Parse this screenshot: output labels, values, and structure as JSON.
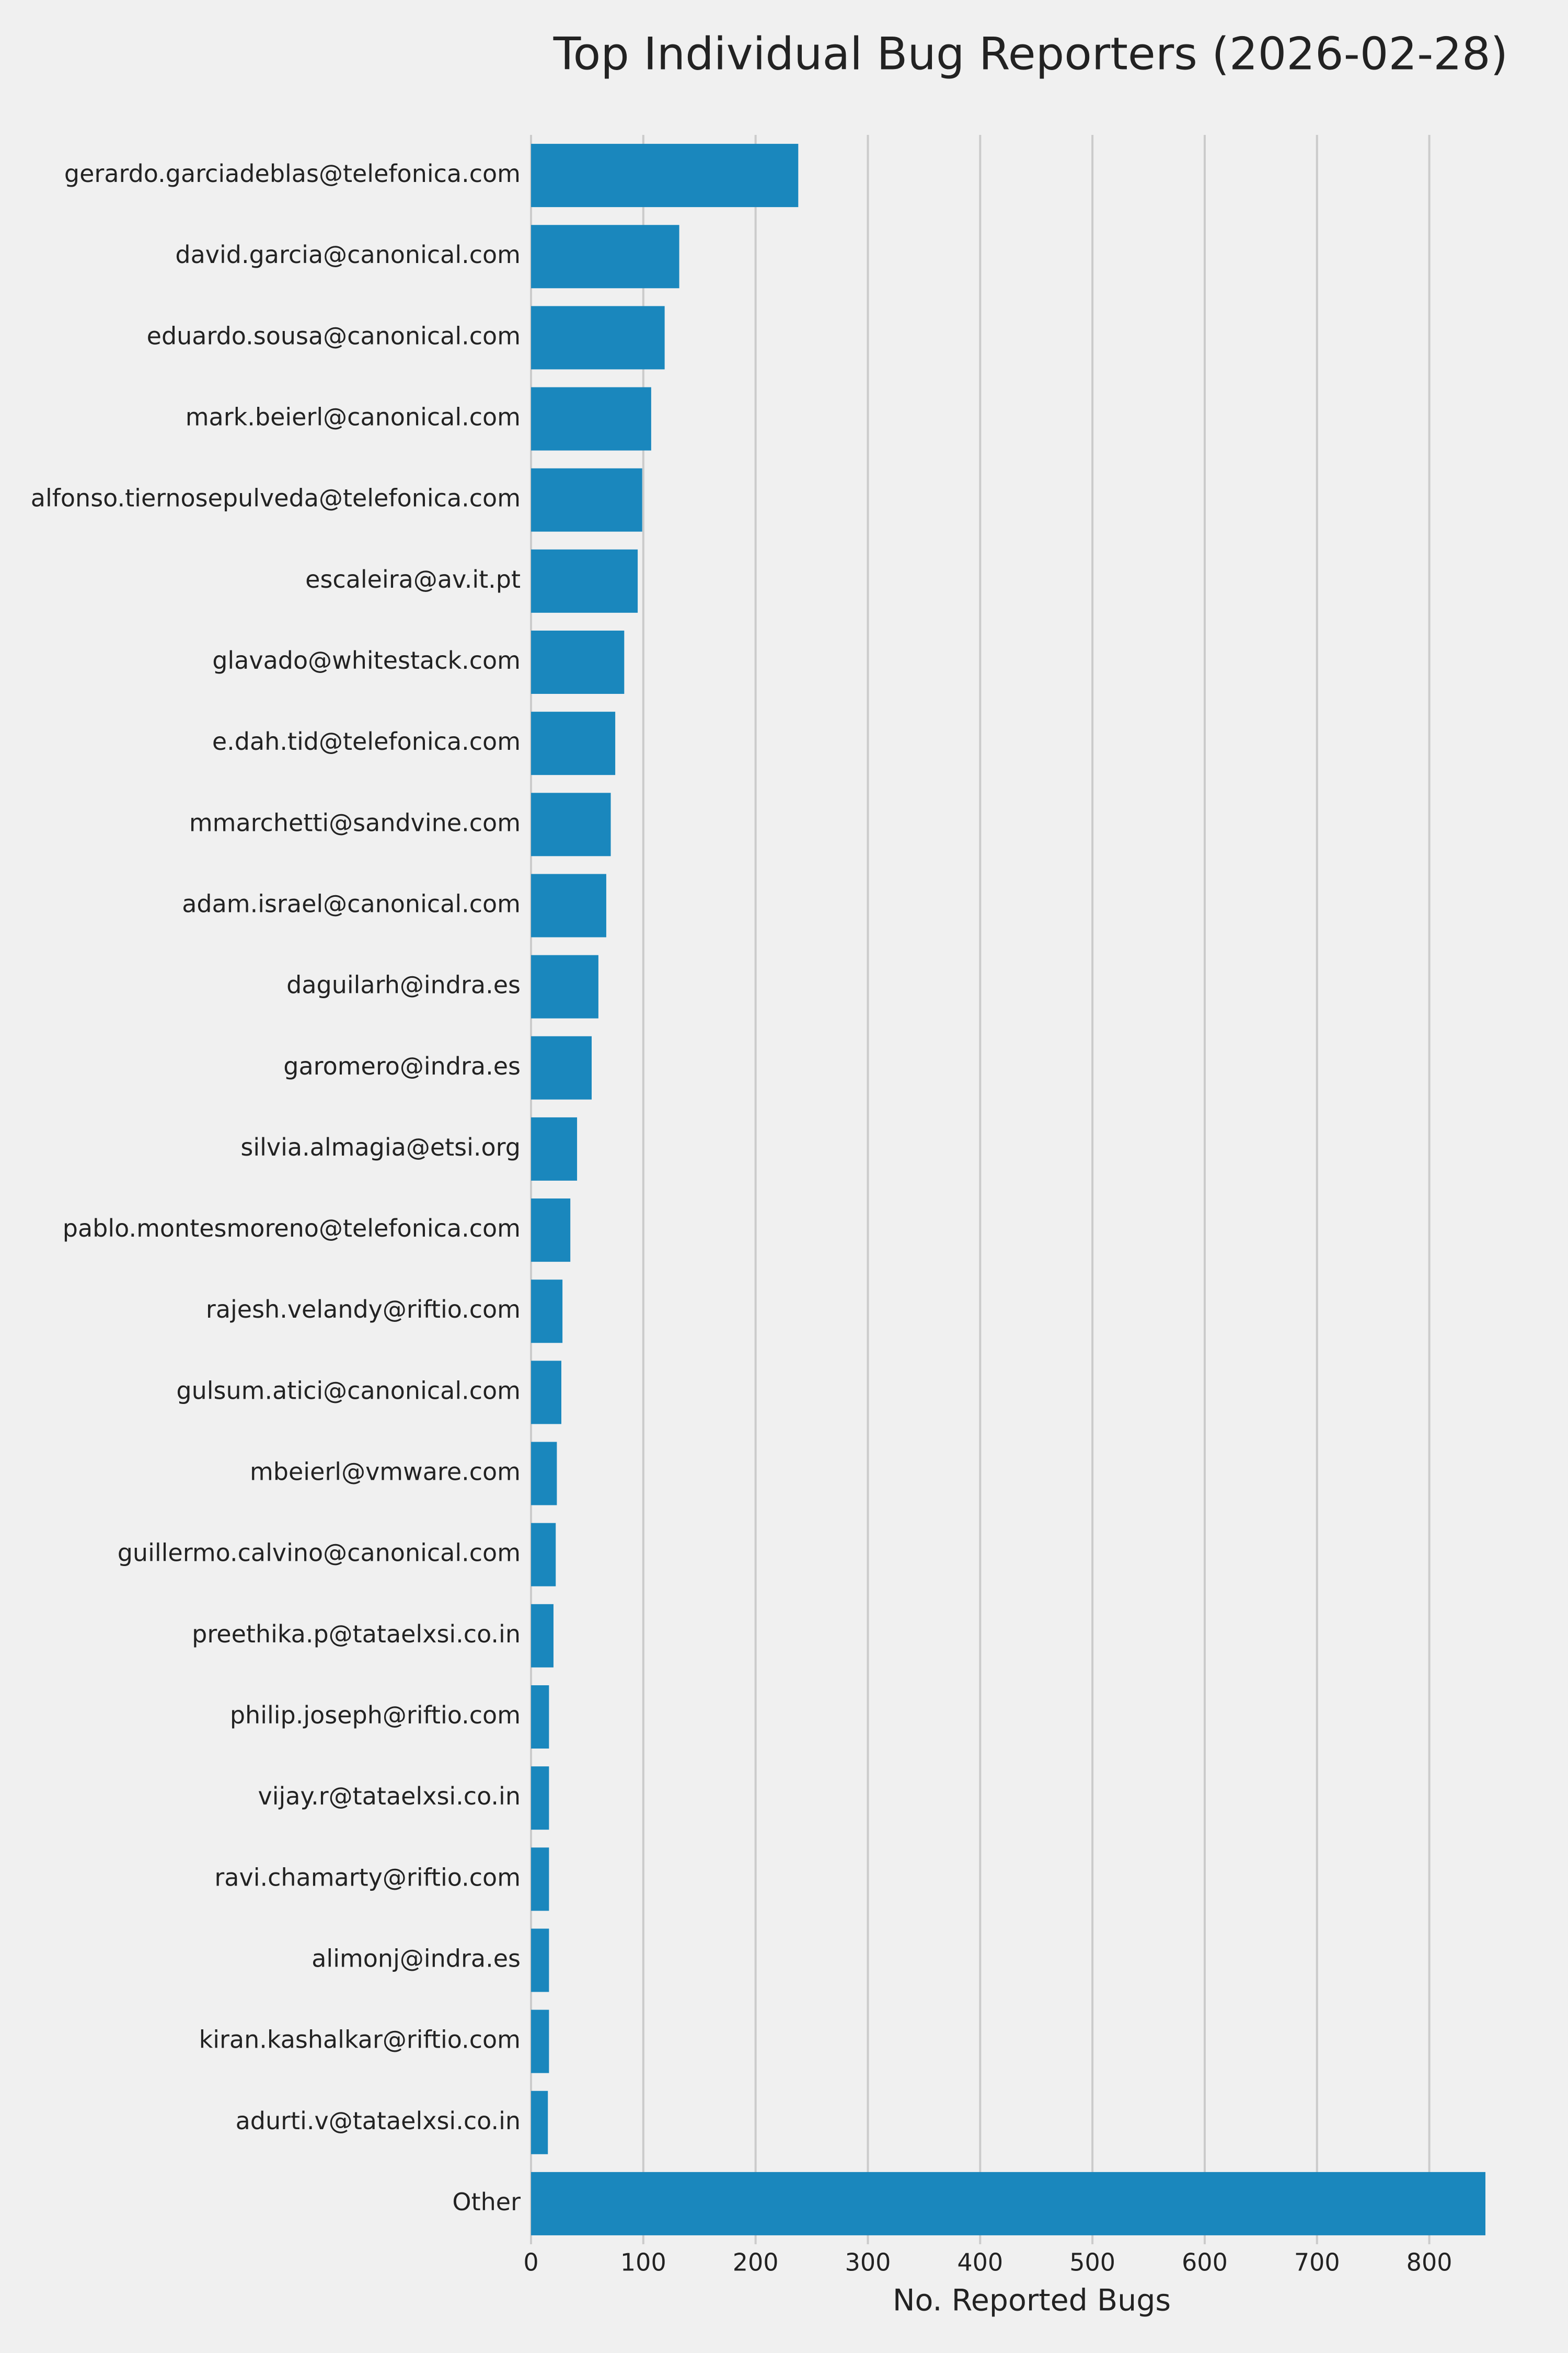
{
  "chart_data": {
    "type": "barh",
    "title": "Top Individual Bug Reporters (2026-02-28)",
    "x_label": "No. Reported Bugs",
    "categories": [
      "gerardo.garciadeblas@telefonica.com",
      "david.garcia@canonical.com",
      "eduardo.sousa@canonical.com",
      "mark.beierl@canonical.com",
      "alfonso.tiernosepulveda@telefonica.com",
      "escaleira@av.it.pt",
      "glavado@whitestack.com",
      "e.dah.tid@telefonica.com",
      "mmarchetti@sandvine.com",
      "adam.israel@canonical.com",
      "daguilarh@indra.es",
      "garomero@indra.es",
      "silvia.almagia@etsi.org",
      "pablo.montesmoreno@telefonica.com",
      "rajesh.velandy@riftio.com",
      "gulsum.atici@canonical.com",
      "mbeierl@vmware.com",
      "guillermo.calvino@canonical.com",
      "preethika.p@tataelxsi.co.in",
      "philip.joseph@riftio.com",
      "vijay.r@tataelxsi.co.in",
      "ravi.chamarty@riftio.com",
      "alimonj@indra.es",
      "kiran.kashalkar@riftio.com",
      "adurti.v@tataelxsi.co.in",
      "Other"
    ],
    "values": [
      238,
      132,
      119,
      107,
      99,
      95,
      83,
      75,
      71,
      67,
      60,
      54,
      41,
      35,
      28,
      27,
      23,
      22,
      20,
      16,
      16,
      16,
      16,
      16,
      15,
      850
    ],
    "color": "#1a87bd",
    "xlim": [
      0,
      850
    ],
    "xticks": [
      0,
      100,
      200,
      300,
      400,
      500,
      600,
      700,
      800
    ],
    "grid": true
  }
}
